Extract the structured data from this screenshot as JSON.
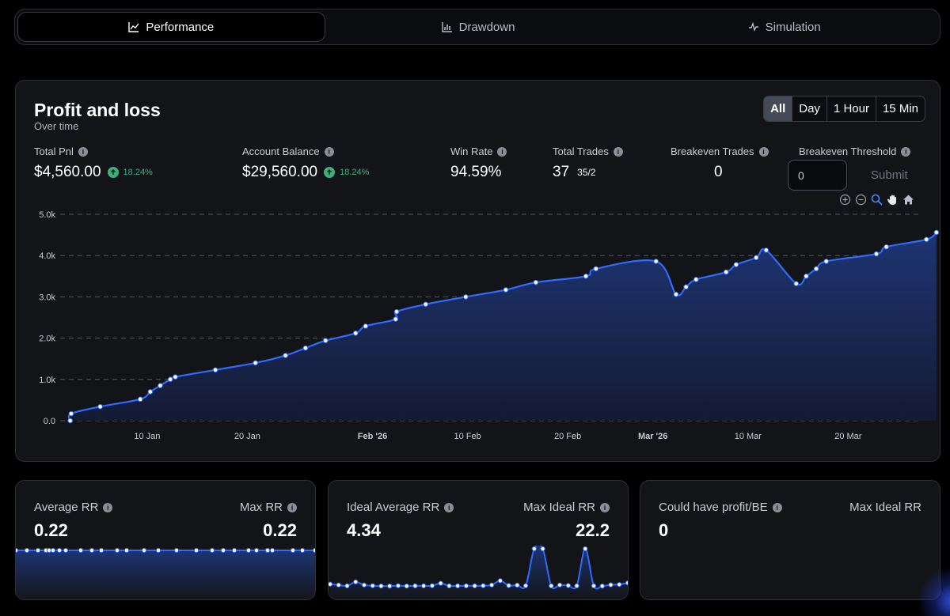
{
  "tabs": [
    {
      "label": "Performance",
      "icon": "line-chart-icon",
      "active": true
    },
    {
      "label": "Drawdown",
      "icon": "bar-chart-icon",
      "active": false
    },
    {
      "label": "Simulation",
      "icon": "activity-icon",
      "active": false
    }
  ],
  "pnl": {
    "title": "Profit and loss",
    "subtitle": "Over time",
    "ranges": [
      "All",
      "Day",
      "1 Hour",
      "15 Min"
    ],
    "selected_range": "All",
    "stats": {
      "total_pnl": {
        "label": "Total Pnl",
        "value": "$4,560.00",
        "change": "18.24%"
      },
      "account_balance": {
        "label": "Account Balance",
        "value": "$29,560.00",
        "change": "18.24%"
      },
      "win_rate": {
        "label": "Win Rate",
        "value": "94.59%"
      },
      "total_trades": {
        "label": "Total Trades",
        "value": "37",
        "sub": "35/2"
      },
      "breakeven_trades": {
        "label": "Breakeven Trades",
        "value": "0"
      },
      "breakeven_threshold": {
        "label": "Breakeven Threshold",
        "value": "0",
        "submit": "Submit"
      }
    }
  },
  "chart_data": {
    "type": "area",
    "y_ticks": [
      "0.0",
      "1.0k",
      "2.0k",
      "3.0k",
      "4.0k",
      "5.0k"
    ],
    "ylim": [
      0,
      5000
    ],
    "x_ticks": [
      "10 Jan",
      "20 Jan",
      "Feb '26",
      "10 Feb",
      "20 Feb",
      "Mar '26",
      "10 Mar",
      "20 Mar"
    ],
    "x_bold_ticks": [
      "Feb '26",
      "Mar '26"
    ],
    "grid": "horizontal dashed",
    "colors": {
      "line": "#2f6bff",
      "fill_top": "#1e3573",
      "fill_bottom": "#141a33",
      "point": "#ffffff"
    },
    "points": [
      [
        1,
        0
      ],
      [
        1.1,
        170
      ],
      [
        4,
        340
      ],
      [
        8,
        520
      ],
      [
        9,
        700
      ],
      [
        10,
        850
      ],
      [
        11,
        1000
      ],
      [
        11.5,
        1060
      ],
      [
        15.5,
        1230
      ],
      [
        19.5,
        1400
      ],
      [
        22.5,
        1580
      ],
      [
        24.5,
        1760
      ],
      [
        26.5,
        1940
      ],
      [
        29.5,
        2120
      ],
      [
        30.5,
        2290
      ],
      [
        33.5,
        2460
      ],
      [
        33.6,
        2640
      ],
      [
        36.5,
        2820
      ],
      [
        40.5,
        3000
      ],
      [
        44.5,
        3170
      ],
      [
        47.5,
        3350
      ],
      [
        52.5,
        3500
      ],
      [
        53.5,
        3680
      ],
      [
        59.5,
        3860
      ],
      [
        61.5,
        3060
      ],
      [
        62.5,
        3240
      ],
      [
        63.5,
        3420
      ],
      [
        66.5,
        3600
      ],
      [
        67.5,
        3780
      ],
      [
        69.5,
        3950
      ],
      [
        70.5,
        4130
      ],
      [
        73.5,
        3320
      ],
      [
        74.5,
        3500
      ],
      [
        75.5,
        3680
      ],
      [
        76.5,
        3860
      ],
      [
        81.5,
        4040
      ],
      [
        82.5,
        4210
      ],
      [
        86.5,
        4390
      ],
      [
        87.5,
        4560
      ]
    ]
  },
  "cards": [
    {
      "left_label": "Average RR",
      "left_value": "0.22",
      "right_label": "Max RR",
      "right_value": "0.22"
    },
    {
      "left_label": "Ideal Average RR",
      "left_value": "4.34",
      "right_label": "Max Ideal RR",
      "right_value": "22.2"
    },
    {
      "left_label": "Could have profit/BE",
      "left_value": "0",
      "right_label": "Max Ideal RR",
      "right_value": ""
    }
  ],
  "spark1": {
    "count": 30,
    "value": 0.22
  },
  "spark2": {
    "values": [
      1.5,
      1,
      0.5,
      2.8,
      1,
      0.6,
      0.4,
      0.4,
      0.6,
      0.4,
      0.5,
      0.5,
      0.6,
      2,
      0.5,
      0.5,
      0.5,
      0.5,
      0.6,
      1,
      3.5,
      0.7,
      0.9,
      0.6,
      22,
      22,
      0.5,
      1,
      0.7,
      0.5,
      22,
      0.5,
      0.4,
      1.1,
      1.3,
      2.2
    ]
  }
}
